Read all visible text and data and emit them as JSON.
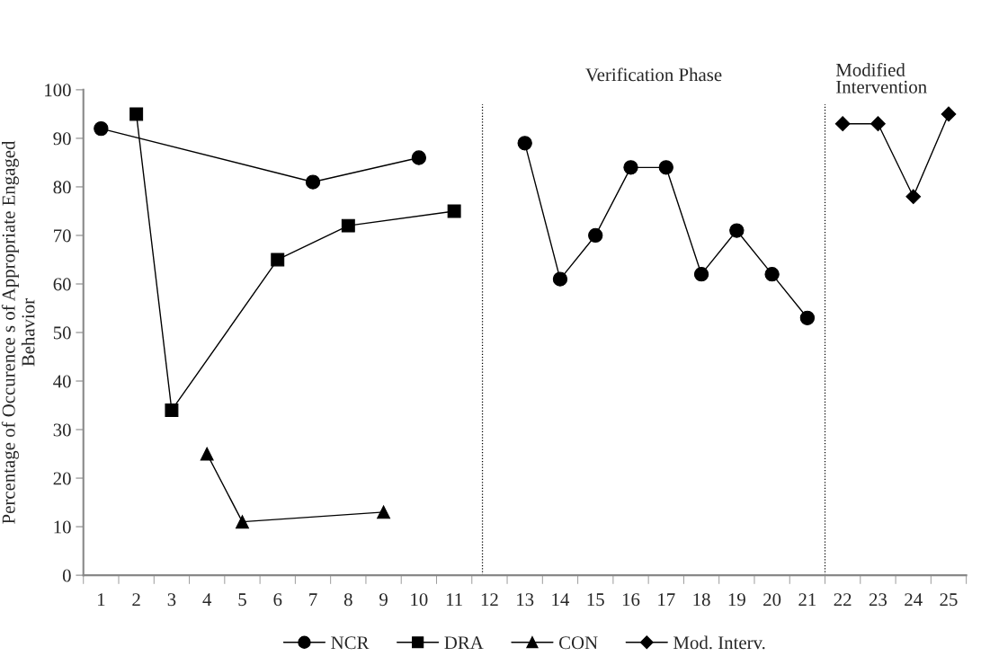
{
  "chart_data": {
    "type": "line",
    "ylabel": "Percentage of Occurence s of Appropriate Engaged\nBehavior",
    "xlim": [
      0.5,
      25.5
    ],
    "xticks": [
      1,
      2,
      3,
      4,
      5,
      6,
      7,
      8,
      9,
      10,
      11,
      12,
      13,
      14,
      15,
      16,
      17,
      18,
      19,
      20,
      21,
      22,
      23,
      24,
      25
    ],
    "ylim": [
      0,
      100
    ],
    "yticks": [
      0,
      10,
      20,
      30,
      40,
      50,
      60,
      70,
      80,
      90,
      100
    ],
    "grid": false,
    "legend": "bottom",
    "series": [
      {
        "name": "NCR",
        "color": "#000000",
        "marker": "circle",
        "x": [
          1,
          7,
          10,
          null,
          13,
          14,
          15,
          16,
          17,
          18,
          19,
          20,
          21
        ],
        "values": [
          92,
          81,
          86,
          null,
          89,
          61,
          70,
          84,
          84,
          62,
          71,
          62,
          53
        ]
      },
      {
        "name": "DRA",
        "color": "#000000",
        "marker": "square",
        "x": [
          2,
          3,
          6,
          8,
          11
        ],
        "values": [
          95,
          34,
          65,
          72,
          75
        ]
      },
      {
        "name": "CON",
        "color": "#000000",
        "marker": "triangle",
        "x": [
          4,
          5,
          9
        ],
        "values": [
          25,
          11,
          13
        ]
      },
      {
        "name": "Mod. Interv.",
        "color": "#000000",
        "marker": "diamond",
        "x": [
          22,
          23,
          24,
          25
        ],
        "values": [
          93,
          93,
          78,
          95
        ]
      }
    ],
    "ref_lines": [
      {
        "axis": "x",
        "value": 11.8,
        "line_style": "dotted",
        "color": "#000000"
      },
      {
        "axis": "x",
        "value": 21.5,
        "line_style": "dotted",
        "color": "#000000"
      }
    ],
    "annotations": [
      "Verification Phase",
      "Modified\nIntervention"
    ]
  }
}
